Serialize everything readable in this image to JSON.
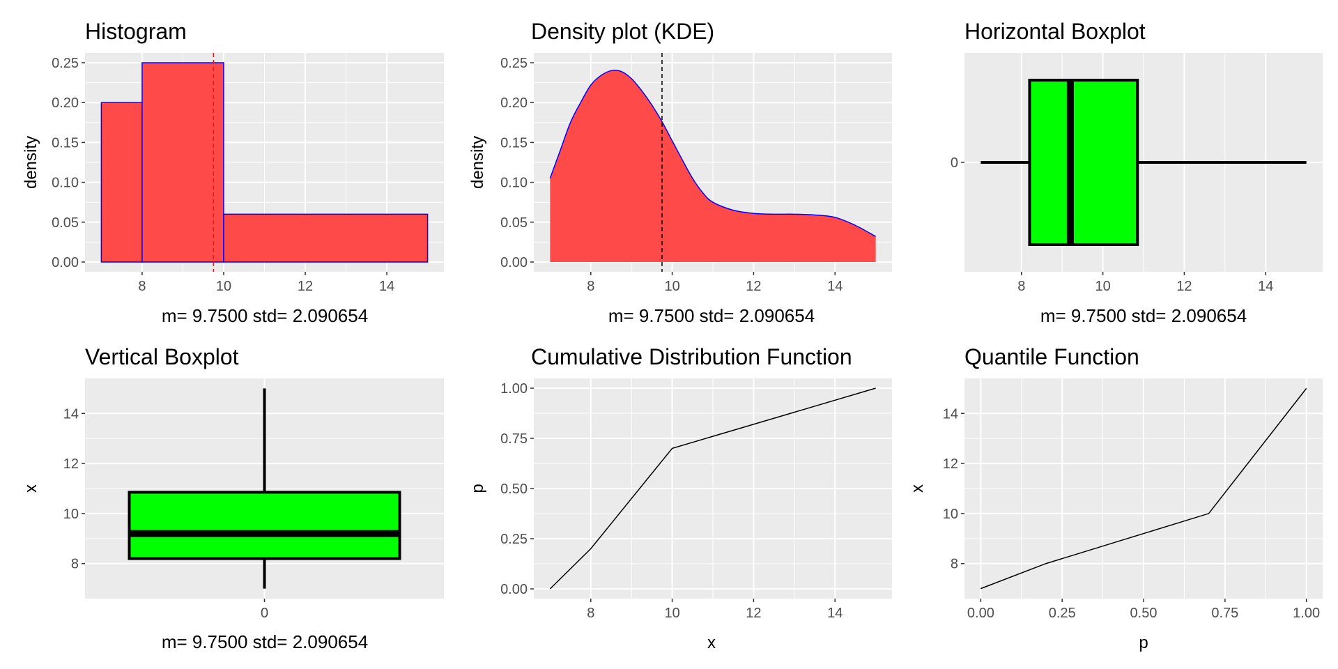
{
  "chart_data": [
    {
      "type": "histogram",
      "title": "Histogram",
      "xlabel": "m=  9.7500  std=  2.090654",
      "ylabel": "density",
      "xlim": [
        6.6,
        15.4
      ],
      "ylim": [
        0,
        0.25
      ],
      "x_ticks": [
        8,
        10,
        12,
        14
      ],
      "y_ticks": [
        "0.00",
        "0.05",
        "0.10",
        "0.15",
        "0.20",
        "0.25"
      ],
      "bins": [
        {
          "start": 7,
          "end": 8,
          "density": 0.2
        },
        {
          "start": 8,
          "end": 10,
          "density": 0.25
        },
        {
          "start": 10,
          "end": 15,
          "density": 0.06
        }
      ],
      "mean_line": 9.75,
      "fill_color": "#ff4a4a",
      "edge_color": "#0000ff",
      "mean_line_color": "#e41a1c",
      "grid": true
    },
    {
      "type": "area",
      "title": "Density plot (KDE)",
      "xlabel": "m=  9.7500  std=  2.090654",
      "ylabel": "density",
      "xlim": [
        6.6,
        15.4
      ],
      "ylim": [
        0,
        0.25
      ],
      "x_ticks": [
        8,
        10,
        12,
        14
      ],
      "y_ticks": [
        "0.00",
        "0.05",
        "0.10",
        "0.15",
        "0.20",
        "0.25"
      ],
      "x": [
        7.0,
        7.25,
        7.5,
        7.75,
        8.0,
        8.25,
        8.5,
        8.75,
        9.0,
        9.25,
        9.5,
        9.75,
        10.0,
        10.25,
        10.5,
        10.75,
        11.0,
        11.5,
        12.0,
        12.5,
        13.0,
        13.5,
        14.0,
        14.5,
        15.0
      ],
      "y": [
        0.105,
        0.14,
        0.175,
        0.2,
        0.222,
        0.234,
        0.24,
        0.239,
        0.23,
        0.215,
        0.197,
        0.176,
        0.152,
        0.128,
        0.105,
        0.087,
        0.075,
        0.065,
        0.061,
        0.06,
        0.06,
        0.059,
        0.056,
        0.046,
        0.032
      ],
      "mean_line": 9.75,
      "fill_color": "#ff4a4a",
      "line_color": "#0000ff",
      "grid": true
    },
    {
      "type": "boxplot",
      "orientation": "horizontal",
      "title": "Horizontal Boxplot",
      "xlabel": "m=  9.7500  std=  2.090654",
      "ylabel": "",
      "xlim": [
        6.6,
        15.4
      ],
      "x_ticks": [
        8,
        10,
        12,
        14
      ],
      "y_ticks": [
        "0"
      ],
      "stats": {
        "min": 7,
        "q1": 8.2,
        "median": 9.2,
        "q3": 10.85,
        "max": 15
      },
      "box_color": "#00ff00",
      "grid": true
    },
    {
      "type": "boxplot",
      "orientation": "vertical",
      "title": "Vertical Boxplot",
      "xlabel": "m=  9.7500  std=  2.090654",
      "ylabel": "x",
      "ylim": [
        6.6,
        15.4
      ],
      "y_ticks": [
        8,
        10,
        12,
        14
      ],
      "x_ticks": [
        "0"
      ],
      "stats": {
        "min": 7,
        "q1": 8.2,
        "median": 9.2,
        "q3": 10.85,
        "max": 15
      },
      "box_color": "#00ff00",
      "grid": true
    },
    {
      "type": "line",
      "title": "Cumulative Distribution Function",
      "xlabel": "x",
      "ylabel": "p",
      "xlim": [
        6.6,
        15.4
      ],
      "ylim": [
        0,
        1
      ],
      "x_ticks": [
        8,
        10,
        12,
        14
      ],
      "y_ticks": [
        "0.00",
        "0.25",
        "0.50",
        "0.75",
        "1.00"
      ],
      "x": [
        7,
        8,
        10,
        15
      ],
      "y": [
        0,
        0.2,
        0.7,
        1.0
      ],
      "line_color": "#000000",
      "grid": true
    },
    {
      "type": "line",
      "title": "Quantile Function",
      "xlabel": "p",
      "ylabel": "x",
      "xlim": [
        -0.05,
        1.05
      ],
      "ylim": [
        6.6,
        15.4
      ],
      "x_ticks": [
        "0.00",
        "0.25",
        "0.50",
        "0.75",
        "1.00"
      ],
      "y_ticks": [
        8,
        10,
        12,
        14
      ],
      "x": [
        0,
        0.2,
        0.7,
        1.0
      ],
      "y": [
        7,
        8,
        10,
        15
      ],
      "line_color": "#000000",
      "grid": true
    }
  ]
}
